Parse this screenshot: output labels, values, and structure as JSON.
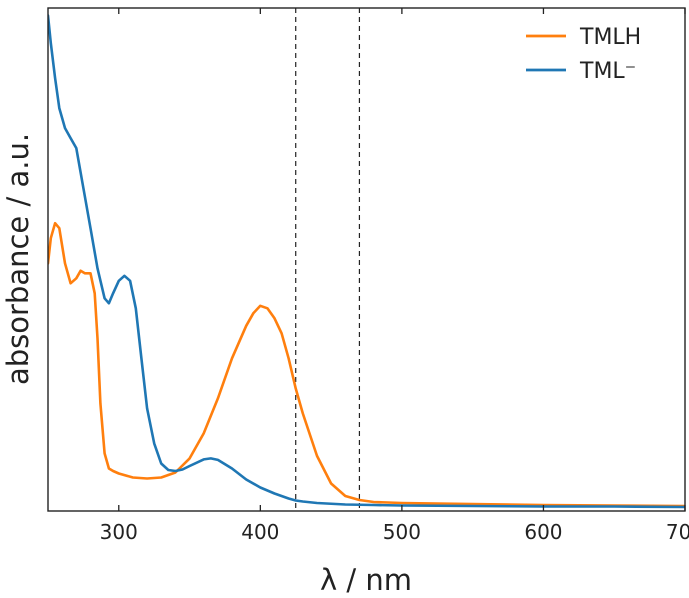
{
  "chart_data": {
    "type": "line",
    "xlabel": "λ / nm",
    "ylabel": "absorbance / a.u.",
    "xlim": [
      250,
      700
    ],
    "ylim": [
      -0.005,
      1.0
    ],
    "xticks": [
      300,
      400,
      500,
      600,
      700
    ],
    "yticks_shown": false,
    "grid": false,
    "legend_position": "top-right",
    "vlines": [
      {
        "x": 425,
        "style": "dashed",
        "color": "#222222"
      },
      {
        "x": 470,
        "style": "dashed",
        "color": "#222222"
      }
    ],
    "series": [
      {
        "name": "TMLH",
        "color": "#ff7f0e",
        "x": [
          250,
          252,
          255,
          258,
          262,
          266,
          270,
          273,
          276,
          280,
          283,
          285,
          287,
          290,
          293,
          296,
          300,
          310,
          320,
          330,
          340,
          350,
          360,
          370,
          380,
          390,
          395,
          400,
          405,
          410,
          415,
          420,
          425,
          430,
          440,
          450,
          460,
          470,
          480,
          500,
          550,
          600,
          650,
          700
        ],
        "y": [
          0.49,
          0.54,
          0.57,
          0.56,
          0.49,
          0.45,
          0.46,
          0.475,
          0.47,
          0.47,
          0.43,
          0.34,
          0.21,
          0.11,
          0.08,
          0.075,
          0.07,
          0.062,
          0.06,
          0.062,
          0.072,
          0.1,
          0.15,
          0.22,
          0.3,
          0.365,
          0.39,
          0.405,
          0.4,
          0.38,
          0.35,
          0.3,
          0.24,
          0.19,
          0.105,
          0.05,
          0.025,
          0.017,
          0.013,
          0.011,
          0.009,
          0.007,
          0.006,
          0.005
        ]
      },
      {
        "name": "TML⁻",
        "color": "#1f77b4",
        "x": [
          250,
          252,
          255,
          258,
          262,
          266,
          270,
          275,
          280,
          285,
          290,
          293,
          296,
          300,
          304,
          308,
          312,
          316,
          320,
          325,
          330,
          335,
          340,
          345,
          350,
          360,
          365,
          370,
          380,
          390,
          400,
          410,
          420,
          425,
          430,
          440,
          460,
          480,
          500,
          550,
          600,
          650,
          700
        ],
        "y": [
          0.985,
          0.93,
          0.86,
          0.8,
          0.76,
          0.74,
          0.72,
          0.64,
          0.56,
          0.48,
          0.42,
          0.41,
          0.43,
          0.455,
          0.465,
          0.455,
          0.4,
          0.3,
          0.2,
          0.13,
          0.09,
          0.077,
          0.075,
          0.078,
          0.085,
          0.098,
          0.1,
          0.097,
          0.08,
          0.058,
          0.042,
          0.03,
          0.02,
          0.016,
          0.014,
          0.011,
          0.008,
          0.007,
          0.006,
          0.005,
          0.004,
          0.004,
          0.003
        ]
      }
    ]
  }
}
